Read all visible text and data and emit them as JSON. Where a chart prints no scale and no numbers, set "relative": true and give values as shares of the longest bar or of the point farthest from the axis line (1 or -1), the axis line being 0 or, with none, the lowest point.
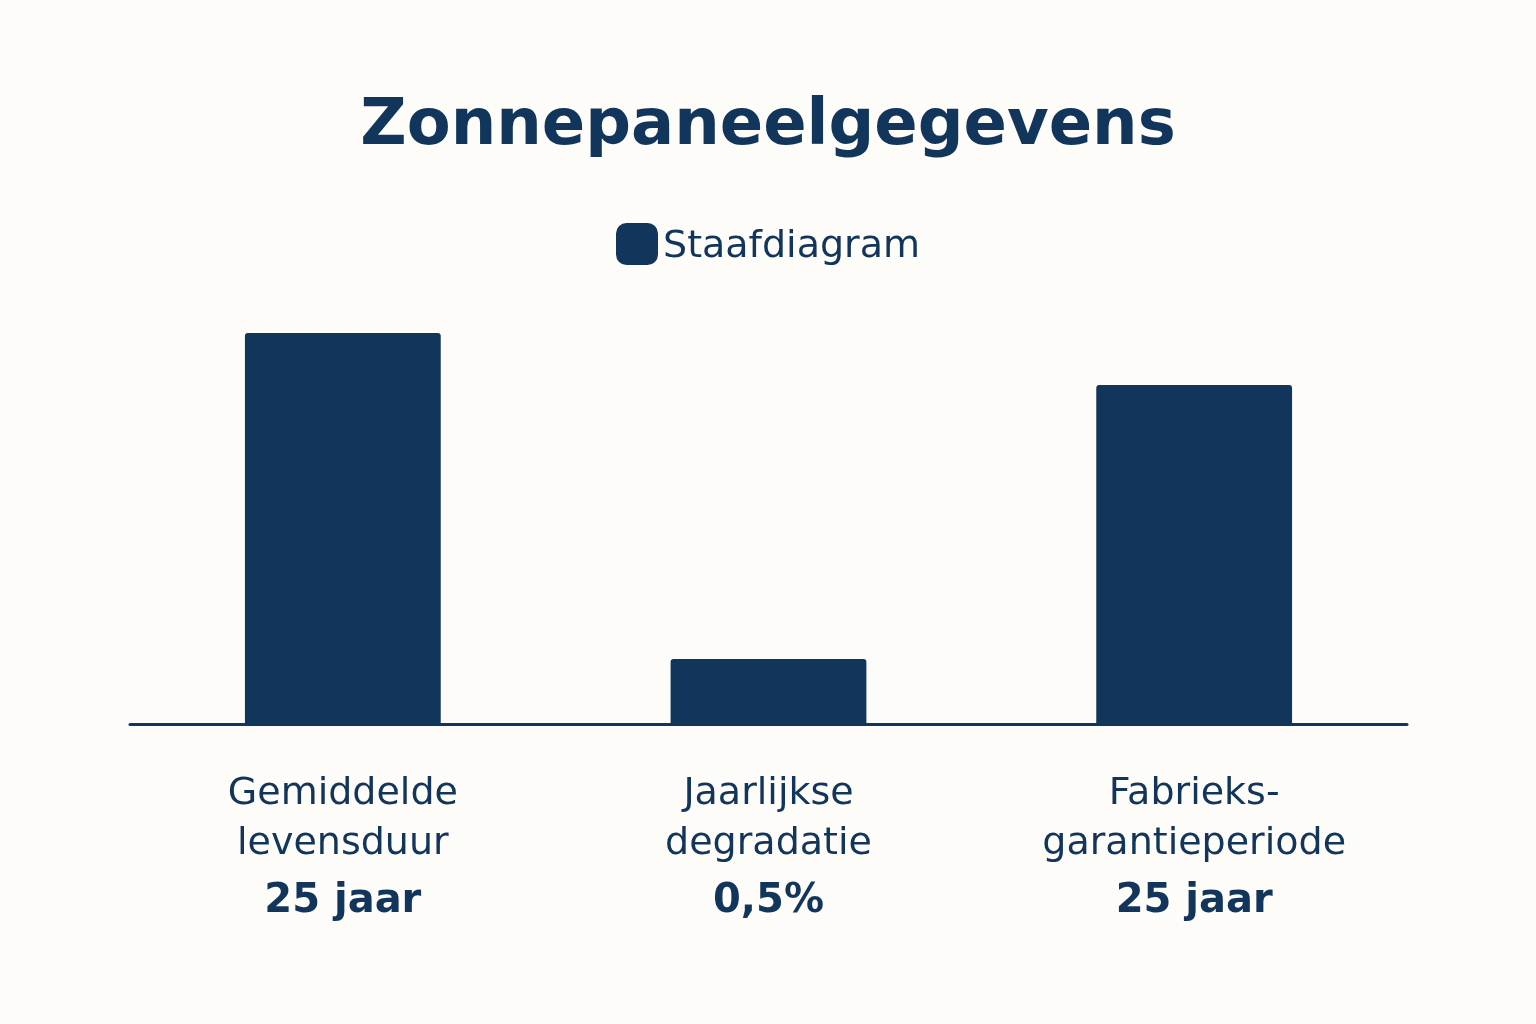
{
  "chart_data": {
    "type": "bar",
    "title": "Zonnepaneelgegevens",
    "categories": [
      "Gemiddelde\nlevensduur",
      "Jaarlijkse\ndegradatie",
      "Fabrieks-\ngarantieperiode"
    ],
    "series": [
      {
        "name": "Staafdiagram",
        "color": "#12355b",
        "values": [
          1,
          0.166,
          0.867
        ]
      }
    ],
    "annotations": [
      "25 jaar",
      "0,5%",
      "25 jaar"
    ],
    "relative": true,
    "legend": "top"
  }
}
